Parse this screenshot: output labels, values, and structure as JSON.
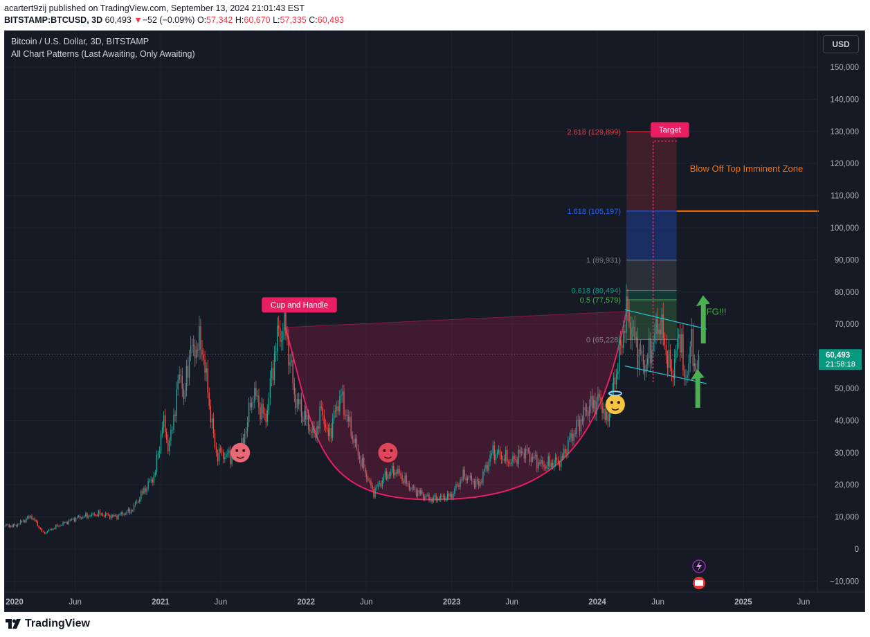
{
  "header": {
    "publisher_line": "acartert9zij published on TradingView.com, September 13, 2024 21:01:43 EST",
    "symbol": "BITSTAMP:BTCUSD, 3D",
    "last": "60,493",
    "change_arrow": "▼",
    "change": "−52 (−0.09%)",
    "o_label": "O:",
    "o_value": "57,342",
    "h_label": "H:",
    "h_value": "60,670",
    "l_label": "L:",
    "l_value": "57,335",
    "c_label": "C:",
    "c_value": "60,493"
  },
  "chart_header": {
    "title": "Bitcoin / U.S. Dollar, 3D, BITSTAMP",
    "indicator": "All Chart Patterns (Last Awaiting, Only Awaiting)",
    "currency": "USD"
  },
  "footer": {
    "brand": "TradingView"
  },
  "colors": {
    "background": "#161a25",
    "up": "#26a69a",
    "down": "#ef5350",
    "cup": "#e91e63",
    "fib_red": "#f23645",
    "fib_blue": "#2962ff",
    "target_line": "#ff6f00",
    "channel": "#26c6da",
    "arrow": "#4caf50",
    "price_label": "#089981"
  },
  "chart_data": {
    "type": "line",
    "title": "Bitcoin / U.S. Dollar, 3D, BITSTAMP",
    "ylim": [
      -15000,
      160000
    ],
    "y_ticks": [
      -10000,
      0,
      10000,
      20000,
      30000,
      40000,
      50000,
      60000,
      70000,
      80000,
      90000,
      100000,
      110000,
      120000,
      130000,
      140000,
      150000
    ],
    "y_tick_labels": [
      "−10,000",
      "0",
      "10,000",
      "20,000",
      "30,000",
      "40,000",
      "50,000",
      "60,000",
      "70,000",
      "80,000",
      "90,000",
      "100,000",
      "110,000",
      "120,000",
      "130,000",
      "140,000",
      "150,000"
    ],
    "x_ticks": [
      {
        "date": "2020-01-01",
        "label": "2020",
        "bold": true
      },
      {
        "date": "2020-06-01",
        "label": "Jun",
        "bold": false
      },
      {
        "date": "2021-01-01",
        "label": "2021",
        "bold": true
      },
      {
        "date": "2021-06-01",
        "label": "Jun",
        "bold": false
      },
      {
        "date": "2022-01-01",
        "label": "2022",
        "bold": true
      },
      {
        "date": "2022-06-01",
        "label": "Jun",
        "bold": false
      },
      {
        "date": "2023-01-01",
        "label": "2023",
        "bold": true
      },
      {
        "date": "2023-06-01",
        "label": "Jun",
        "bold": false
      },
      {
        "date": "2024-01-01",
        "label": "2024",
        "bold": true
      },
      {
        "date": "2024-06-01",
        "label": "Jun",
        "bold": false
      },
      {
        "date": "2025-01-01",
        "label": "2025",
        "bold": true
      },
      {
        "date": "2025-06-01",
        "label": "Jun",
        "bold": false
      }
    ],
    "series": [
      {
        "values": [
          [
            "2019-11-20",
            7500
          ],
          [
            "2020-01-01",
            7200
          ],
          [
            "2020-02-12",
            10300
          ],
          [
            "2020-03-13",
            4900
          ],
          [
            "2020-04-15",
            7000
          ],
          [
            "2020-06-01",
            9600
          ],
          [
            "2020-07-28",
            11000
          ],
          [
            "2020-09-08",
            10100
          ],
          [
            "2020-10-20",
            12000
          ],
          [
            "2020-11-18",
            17800
          ],
          [
            "2020-12-17",
            23000
          ],
          [
            "2021-01-08",
            40000
          ],
          [
            "2021-01-22",
            31000
          ],
          [
            "2021-02-21",
            57000
          ],
          [
            "2021-02-28",
            45000
          ],
          [
            "2021-03-13",
            61000
          ],
          [
            "2021-04-14",
            64000
          ],
          [
            "2021-05-19",
            30000
          ],
          [
            "2021-06-22",
            29000
          ],
          [
            "2021-07-20",
            29500
          ],
          [
            "2021-08-22",
            49000
          ],
          [
            "2021-09-21",
            40000
          ],
          [
            "2021-10-20",
            66000
          ],
          [
            "2021-11-10",
            69000
          ],
          [
            "2021-12-04",
            47000
          ],
          [
            "2022-01-22",
            35000
          ],
          [
            "2022-02-10",
            44000
          ],
          [
            "2022-02-24",
            34400
          ],
          [
            "2022-03-28",
            48000
          ],
          [
            "2022-05-10",
            30000
          ],
          [
            "2022-06-18",
            17600
          ],
          [
            "2022-07-20",
            23000
          ],
          [
            "2022-08-14",
            24500
          ],
          [
            "2022-09-20",
            19000
          ],
          [
            "2022-11-09",
            15500
          ],
          [
            "2022-12-30",
            16500
          ],
          [
            "2023-01-31",
            23000
          ],
          [
            "2023-03-10",
            20000
          ],
          [
            "2023-04-14",
            30500
          ],
          [
            "2023-05-30",
            27000
          ],
          [
            "2023-06-30",
            30500
          ],
          [
            "2023-08-18",
            26000
          ],
          [
            "2023-10-02",
            27500
          ],
          [
            "2023-10-24",
            34000
          ],
          [
            "2023-12-08",
            44000
          ],
          [
            "2024-01-10",
            46500
          ],
          [
            "2024-01-23",
            39000
          ],
          [
            "2024-02-28",
            62000
          ],
          [
            "2024-03-14",
            73800
          ],
          [
            "2024-04-17",
            60000
          ],
          [
            "2024-05-01",
            57000
          ],
          [
            "2024-06-05",
            71000
          ],
          [
            "2024-07-05",
            54000
          ],
          [
            "2024-07-29",
            69000
          ],
          [
            "2024-08-05",
            50000
          ],
          [
            "2024-08-24",
            64000
          ],
          [
            "2024-09-06",
            53000
          ],
          [
            "2024-09-13",
            60493
          ]
        ]
      }
    ],
    "last_price": {
      "value": 60493,
      "label": "60,493",
      "countdown": "21:58:18"
    },
    "fibonacci": {
      "start": "2024-03-14",
      "end": "2024-07-18",
      "levels": [
        {
          "ratio": "2.618",
          "value": 129899,
          "label": "2.618 (129,899)",
          "color": "#f23645"
        },
        {
          "ratio": "1.618",
          "value": 105197,
          "label": "1.618 (105,197)",
          "color": "#2962ff"
        },
        {
          "ratio": "1",
          "value": 89931,
          "label": "1 (89,931)",
          "color": "#787b86"
        },
        {
          "ratio": "0.618",
          "value": 80494,
          "label": "0.618 (80,494)",
          "color": "#089981"
        },
        {
          "ratio": "0.5",
          "value": 77579,
          "label": "0.5 (77,579)",
          "color": "#4caf50"
        },
        {
          "ratio": "0",
          "value": 65228,
          "label": "0 (65,228)",
          "color": "#787b86"
        }
      ]
    },
    "cup": {
      "left_rim": [
        "2021-11-10",
        69000
      ],
      "bottom": [
        "2022-12-15",
        15500
      ],
      "right_rim": [
        "2024-03-14",
        74000
      ]
    },
    "channel": {
      "upper": [
        [
          "2024-03-10",
          74500
        ],
        [
          "2024-10-01",
          68500
        ]
      ],
      "lower": [
        [
          "2024-03-10",
          57000
        ],
        [
          "2024-10-01",
          51500
        ]
      ]
    },
    "target_level": {
      "value": 105197,
      "from": "2024-07-18",
      "to": "2025-06-20",
      "color": "#ff6f00"
    },
    "target_path": [
      [
        "2024-05-20",
        52000
      ],
      [
        "2024-05-20",
        127000
      ],
      [
        "2024-07-22",
        127000
      ]
    ],
    "annotations": [
      {
        "text": "Cup and Handle",
        "date": "2021-12-15",
        "value": 76000,
        "kind": "badge"
      },
      {
        "text": "Target",
        "date": "2024-07-01",
        "value": 130500,
        "kind": "badge"
      },
      {
        "text": "Blow Off Top Imminent Zone",
        "date": "2024-08-20",
        "value": 117500,
        "kind": "label",
        "color": "#ff6f00"
      },
      {
        "text": "LFG!!!",
        "date": "2024-09-18",
        "value": 73000,
        "kind": "label",
        "color": "#4caf50"
      }
    ],
    "emojis": [
      {
        "name": "cold-face-bull-emoji",
        "date": "2021-07-20",
        "value": 30000
      },
      {
        "name": "cursing-face-emoji",
        "date": "2022-07-25",
        "value": 30000
      },
      {
        "name": "smiling-halo-emoji",
        "date": "2024-02-15",
        "value": 45000
      }
    ],
    "arrows": [
      {
        "from": [
          "2024-09-22",
          64000
        ],
        "to": [
          "2024-09-22",
          79000
        ]
      },
      {
        "from": [
          "2024-09-08",
          44000
        ],
        "to": [
          "2024-09-08",
          56000
        ]
      }
    ]
  }
}
